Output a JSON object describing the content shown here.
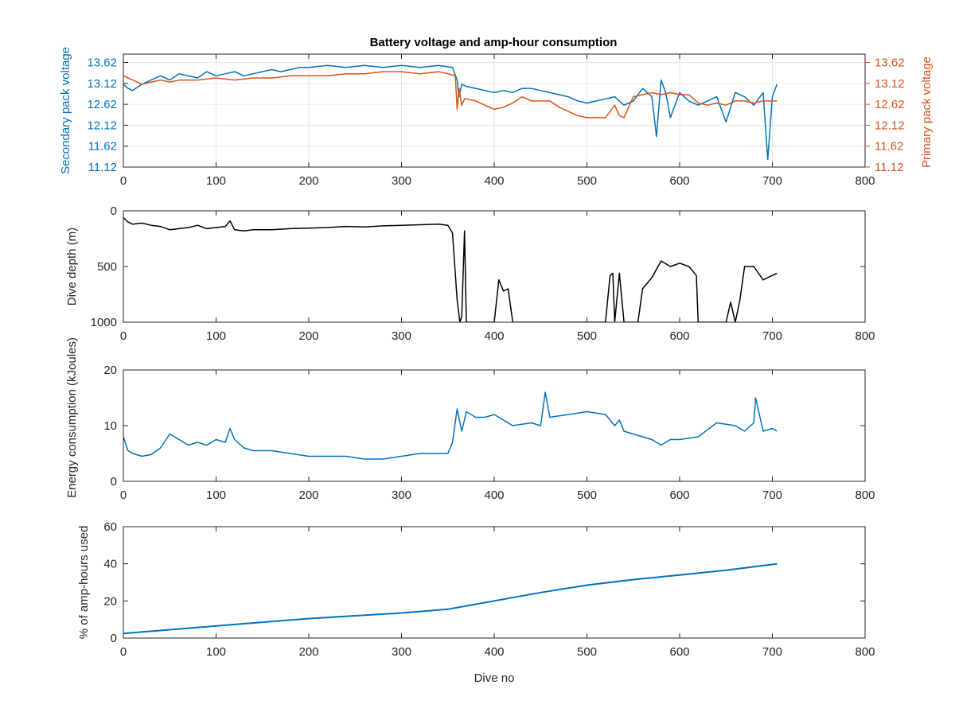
{
  "figure": {
    "title": "Battery voltage and amp-hour consumption",
    "colors": {
      "blue": "#0072BD",
      "orange": "#D95319",
      "black": "#000000",
      "grid": "#e6e6e6"
    }
  },
  "chart_data": [
    {
      "type": "line",
      "xlabel": "",
      "ylabel": "Secondary pack voltage",
      "ylabel_right": "Primary pack voltage",
      "xlim": [
        0,
        800
      ],
      "ylim": [
        11.12,
        13.82
      ],
      "xticks": [
        "0",
        "100",
        "200",
        "300",
        "400",
        "500",
        "600",
        "700",
        "800"
      ],
      "yticks": [
        "11.12",
        "11.62",
        "12.12",
        "12.62",
        "13.12",
        "13.62"
      ],
      "yticks_right": [
        "11.12",
        "11.62",
        "12.12",
        "12.62",
        "13.12",
        "13.62"
      ],
      "grid": true,
      "series": [
        {
          "axis": "left",
          "color": "#0072BD",
          "x": [
            0,
            5,
            10,
            20,
            30,
            40,
            50,
            60,
            70,
            80,
            90,
            100,
            110,
            120,
            130,
            140,
            150,
            160,
            170,
            180,
            190,
            200,
            220,
            240,
            260,
            280,
            300,
            320,
            340,
            355,
            360,
            362,
            365,
            370,
            380,
            390,
            400,
            410,
            420,
            430,
            440,
            450,
            460,
            470,
            480,
            490,
            500,
            510,
            520,
            530,
            540,
            550,
            560,
            570,
            575,
            580,
            585,
            590,
            600,
            610,
            620,
            630,
            640,
            650,
            660,
            670,
            680,
            690,
            695,
            700,
            705
          ],
          "y": [
            13.1,
            13.0,
            12.95,
            13.1,
            13.2,
            13.3,
            13.2,
            13.35,
            13.3,
            13.25,
            13.4,
            13.3,
            13.35,
            13.4,
            13.3,
            13.35,
            13.4,
            13.45,
            13.4,
            13.45,
            13.5,
            13.5,
            13.55,
            13.5,
            13.55,
            13.5,
            13.55,
            13.5,
            13.55,
            13.5,
            13.2,
            12.8,
            13.1,
            13.05,
            13.0,
            12.95,
            12.9,
            12.95,
            12.9,
            13.0,
            13.0,
            12.95,
            12.9,
            12.85,
            12.8,
            12.7,
            12.65,
            12.7,
            12.75,
            12.8,
            12.6,
            12.7,
            13.0,
            12.8,
            11.85,
            13.2,
            12.9,
            12.3,
            12.9,
            12.7,
            12.6,
            12.7,
            12.8,
            12.2,
            12.9,
            12.8,
            12.6,
            12.9,
            11.3,
            12.8,
            13.1
          ]
        },
        {
          "axis": "right",
          "color": "#D95319",
          "x": [
            0,
            10,
            20,
            30,
            40,
            50,
            60,
            80,
            100,
            120,
            140,
            160,
            180,
            200,
            220,
            240,
            260,
            280,
            300,
            320,
            340,
            350,
            358,
            360,
            362,
            365,
            368,
            370,
            380,
            390,
            400,
            410,
            420,
            430,
            440,
            450,
            460,
            470,
            480,
            490,
            500,
            510,
            520,
            530,
            535,
            540,
            550,
            560,
            570,
            580,
            590,
            600,
            610,
            620,
            630,
            640,
            650,
            660,
            670,
            680,
            690,
            700,
            705
          ],
          "y": [
            13.3,
            13.2,
            13.1,
            13.15,
            13.2,
            13.15,
            13.2,
            13.2,
            13.25,
            13.2,
            13.25,
            13.25,
            13.3,
            13.3,
            13.3,
            13.35,
            13.35,
            13.4,
            13.4,
            13.35,
            13.4,
            13.35,
            13.3,
            12.5,
            13.0,
            12.6,
            12.75,
            12.75,
            12.7,
            12.6,
            12.5,
            12.55,
            12.65,
            12.8,
            12.7,
            12.7,
            12.7,
            12.55,
            12.45,
            12.35,
            12.3,
            12.3,
            12.3,
            12.6,
            12.35,
            12.3,
            12.8,
            12.85,
            12.9,
            12.85,
            12.9,
            12.85,
            12.85,
            12.65,
            12.6,
            12.65,
            12.6,
            12.7,
            12.7,
            12.65,
            12.7,
            12.7,
            12.7
          ]
        }
      ]
    },
    {
      "type": "line",
      "xlabel": "",
      "ylabel": "Dive depth (m)",
      "xlim": [
        0,
        800
      ],
      "ylim": [
        0,
        1000
      ],
      "y_reversed": true,
      "xticks": [
        "0",
        "100",
        "200",
        "300",
        "400",
        "500",
        "600",
        "700",
        "800"
      ],
      "yticks": [
        "0",
        "500",
        "1000"
      ],
      "grid": false,
      "series": [
        {
          "color": "#000000",
          "x": [
            0,
            5,
            10,
            20,
            30,
            40,
            50,
            60,
            70,
            80,
            90,
            100,
            110,
            115,
            120,
            130,
            140,
            160,
            180,
            200,
            220,
            240,
            260,
            280,
            300,
            320,
            340,
            350,
            355,
            360,
            363,
            365,
            368,
            370,
            375,
            400,
            405,
            410,
            415,
            420,
            430,
            450,
            500,
            520,
            525,
            528,
            530,
            535,
            540,
            545,
            550,
            555,
            560,
            570,
            580,
            590,
            600,
            610,
            618,
            620,
            640,
            650,
            655,
            660,
            665,
            670,
            680,
            690,
            700,
            705
          ],
          "y": [
            60,
            100,
            120,
            110,
            130,
            140,
            170,
            160,
            150,
            130,
            160,
            150,
            140,
            90,
            170,
            180,
            170,
            170,
            160,
            155,
            150,
            140,
            145,
            135,
            130,
            125,
            120,
            130,
            200,
            800,
            1000,
            950,
            180,
            1000,
            1000,
            1000,
            620,
            720,
            700,
            1000,
            1000,
            1000,
            1000,
            1000,
            580,
            560,
            1000,
            560,
            1000,
            1000,
            1000,
            1000,
            700,
            600,
            450,
            500,
            470,
            500,
            580,
            1000,
            1000,
            1000,
            820,
            1000,
            800,
            500,
            500,
            620,
            580,
            560
          ]
        }
      ]
    },
    {
      "type": "line",
      "xlabel": "",
      "ylabel": "Energy consumption (kJoules)",
      "xlim": [
        0,
        800
      ],
      "ylim": [
        0,
        20
      ],
      "xticks": [
        "0",
        "100",
        "200",
        "300",
        "400",
        "500",
        "600",
        "700",
        "800"
      ],
      "yticks": [
        "0",
        "10",
        "20"
      ],
      "grid": false,
      "series": [
        {
          "color": "#0072BD",
          "x": [
            0,
            5,
            10,
            20,
            30,
            40,
            50,
            60,
            70,
            80,
            90,
            100,
            110,
            115,
            120,
            130,
            140,
            160,
            180,
            200,
            220,
            240,
            260,
            280,
            300,
            320,
            340,
            350,
            355,
            360,
            365,
            370,
            380,
            390,
            400,
            420,
            440,
            450,
            455,
            460,
            480,
            500,
            520,
            530,
            535,
            540,
            550,
            560,
            570,
            580,
            590,
            600,
            620,
            640,
            660,
            670,
            680,
            682,
            690,
            700,
            705
          ],
          "y": [
            8,
            5.5,
            5,
            4.5,
            4.8,
            6,
            8.5,
            7.5,
            6.5,
            7,
            6.5,
            7.5,
            7,
            9.5,
            7.5,
            6,
            5.5,
            5.5,
            5,
            4.5,
            4.5,
            4.5,
            4,
            4,
            4.5,
            5,
            5,
            5,
            7,
            13,
            9,
            12.5,
            11.5,
            11.5,
            12,
            10,
            10.5,
            10,
            16,
            11.5,
            12,
            12.5,
            12,
            10,
            11,
            9,
            8.5,
            8,
            7.5,
            6.5,
            7.5,
            7.5,
            8,
            10.5,
            10,
            9,
            10.5,
            15,
            9,
            9.5,
            9
          ]
        }
      ]
    },
    {
      "type": "line",
      "xlabel": "Dive no",
      "ylabel": "% of amp-hours used",
      "xlim": [
        0,
        800
      ],
      "ylim": [
        0,
        60
      ],
      "xticks": [
        "0",
        "100",
        "200",
        "300",
        "400",
        "500",
        "600",
        "700",
        "800"
      ],
      "yticks": [
        "0",
        "20",
        "40",
        "60"
      ],
      "grid": false,
      "series": [
        {
          "color": "#0072BD",
          "x": [
            0,
            100,
            200,
            300,
            350,
            400,
            450,
            500,
            550,
            600,
            650,
            705
          ],
          "y": [
            2.5,
            6.5,
            10.5,
            13.5,
            15.5,
            20,
            24.5,
            28.5,
            31.5,
            34,
            36.5,
            40
          ]
        }
      ]
    }
  ]
}
